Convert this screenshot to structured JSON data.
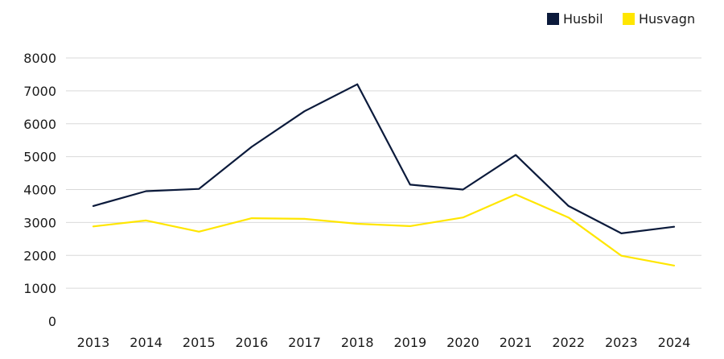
{
  "chart_data": {
    "type": "line",
    "title": "",
    "xlabel": "",
    "ylabel": "",
    "categories": [
      "2013",
      "2014",
      "2015",
      "2016",
      "2017",
      "2018",
      "2019",
      "2020",
      "2021",
      "2022",
      "2023",
      "2024"
    ],
    "series": [
      {
        "name": "Husbil",
        "color": "#0b1a3b",
        "values": [
          3500,
          3950,
          4020,
          5300,
          6380,
          7200,
          4150,
          4000,
          5050,
          3500,
          2670,
          2870
        ]
      },
      {
        "name": "Husvagn",
        "color": "#ffe600",
        "values": [
          2880,
          3060,
          2720,
          3130,
          3110,
          2960,
          2890,
          3150,
          3850,
          3150,
          1990,
          1690
        ]
      }
    ],
    "ylim": [
      0,
      8000
    ],
    "yticks": [
      0,
      1000,
      2000,
      3000,
      4000,
      5000,
      6000,
      7000,
      8000
    ],
    "ytick_labels": [
      "0",
      "1000",
      "2000",
      "3000",
      "4000",
      "5000",
      "6000",
      "7000",
      "8000"
    ],
    "grid": true,
    "legend_position": "top-right"
  }
}
